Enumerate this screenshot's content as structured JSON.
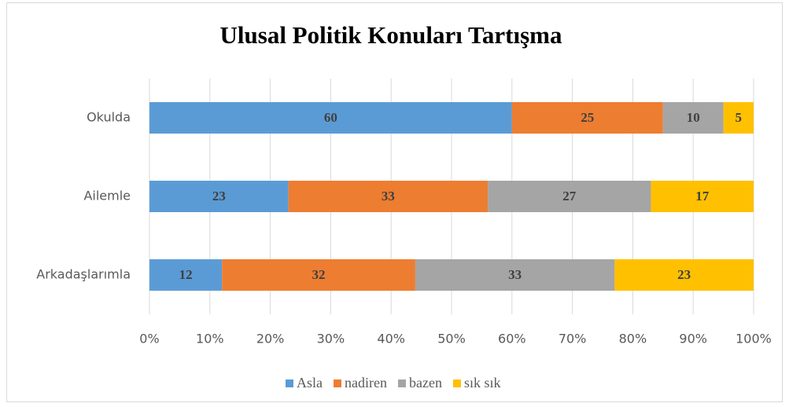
{
  "chart_data": {
    "type": "stacked_bar_horizontal",
    "title": "Ulusal Politik Konuları Tartışma",
    "categories": [
      "Okulda",
      "Ailemle",
      "Arkadaşlarımla"
    ],
    "series": [
      {
        "name": "Asla",
        "color": "#5b9bd5",
        "values": [
          60,
          23,
          12
        ]
      },
      {
        "name": "nadiren",
        "color": "#ed7d31",
        "values": [
          25,
          33,
          32
        ]
      },
      {
        "name": "bazen",
        "color": "#a5a5a5",
        "values": [
          10,
          27,
          33
        ]
      },
      {
        "name": "sık sık",
        "color": "#ffc000",
        "values": [
          5,
          17,
          23
        ]
      }
    ],
    "xlim": [
      0,
      100
    ],
    "xticks": [
      {
        "value": 0,
        "label": "0%"
      },
      {
        "value": 10,
        "label": "10%"
      },
      {
        "value": 20,
        "label": "20%"
      },
      {
        "value": 30,
        "label": "30%"
      },
      {
        "value": 40,
        "label": "40%"
      },
      {
        "value": 50,
        "label": "50%"
      },
      {
        "value": 60,
        "label": "60%"
      },
      {
        "value": 70,
        "label": "70%"
      },
      {
        "value": 80,
        "label": "80%"
      },
      {
        "value": 90,
        "label": "90%"
      },
      {
        "value": 100,
        "label": "100%"
      }
    ],
    "grid": true,
    "legend": "bottom"
  }
}
